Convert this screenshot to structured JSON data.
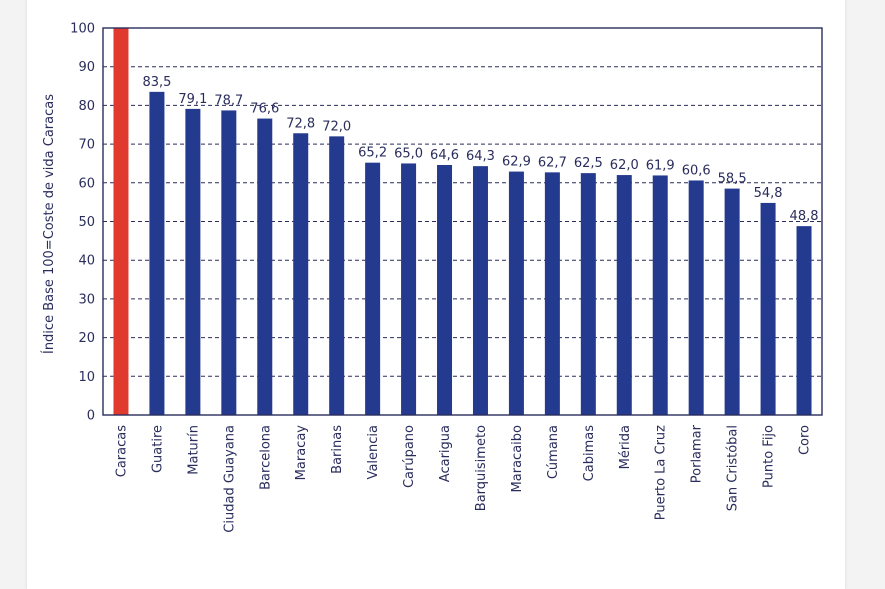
{
  "chart_data": {
    "type": "bar",
    "title": "",
    "xlabel": "",
    "ylabel": "Índice Base 100=Coste de vida Caracas",
    "ylim": [
      0,
      100
    ],
    "yticks": [
      0,
      10,
      20,
      30,
      40,
      50,
      60,
      70,
      80,
      90,
      100
    ],
    "grid": "horizontal-dashed",
    "categories": [
      "Caracas",
      "Guatire",
      "Maturín",
      "Ciudad Guayana",
      "Barcelona",
      "Maracay",
      "Barinas",
      "Valencia",
      "Carúpano",
      "Acarigua",
      "Barquisimeto",
      "Maracaibo",
      "Cúmana",
      "Cabimas",
      "Mérida",
      "Puerto La Cruz",
      "Porlamar",
      "San Cristóbal",
      "Punto Fijo",
      "Coro"
    ],
    "values": [
      100,
      83.5,
      79.1,
      78.7,
      76.6,
      72.8,
      72.0,
      65.2,
      65.0,
      64.6,
      64.3,
      62.9,
      62.7,
      62.5,
      62.0,
      61.9,
      60.6,
      58.5,
      54.8,
      48.8
    ],
    "value_labels": [
      "",
      "83,5",
      "79,1",
      "78,7",
      "76,6",
      "72,8",
      "72,0",
      "65,2",
      "65,0",
      "64,6",
      "64,3",
      "62,9",
      "62,7",
      "62,5",
      "62,0",
      "61,9",
      "60,6",
      "58,5",
      "54,8",
      "48,8"
    ],
    "colors": {
      "highlight": "#e03a2f",
      "bar": "#233a8f",
      "axis": "#2a2d5c",
      "grid": "#2a2d5c",
      "text": "#2a2d5c"
    }
  }
}
